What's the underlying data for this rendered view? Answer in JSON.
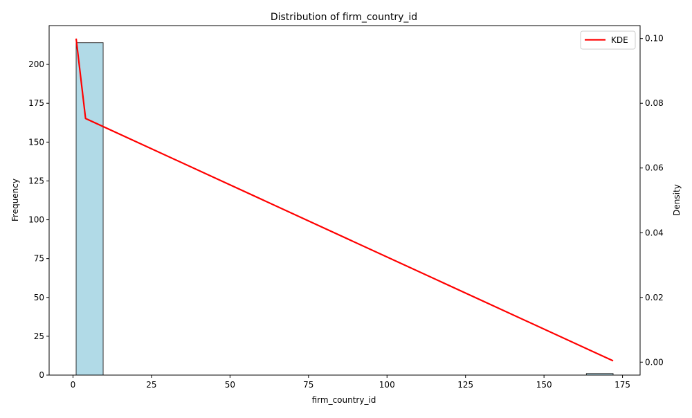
{
  "chart_data": {
    "type": "histogram",
    "title": "Distribution of firm_country_id",
    "xlabel": "firm_country_id",
    "ylabel": "Frequency",
    "ylabel_right": "Density",
    "xlim": [
      -7.6,
      180.6
    ],
    "ylim": [
      0,
      225
    ],
    "ylim_right": [
      -0.004,
      0.104
    ],
    "x_ticks": [
      0,
      25,
      50,
      75,
      100,
      125,
      150,
      175
    ],
    "y_ticks": [
      0,
      25,
      50,
      75,
      100,
      125,
      150,
      175,
      200
    ],
    "y_right_ticks": [
      0.0,
      0.02,
      0.04,
      0.06,
      0.08,
      0.1
    ],
    "y_right_tick_labels": [
      "0.00",
      "0.02",
      "0.04",
      "0.06",
      "0.08",
      "0.10"
    ],
    "bins": [
      {
        "x0": 1.0,
        "x1": 9.6,
        "count": 214
      },
      {
        "x0": 9.6,
        "x1": 18.1,
        "count": 0
      },
      {
        "x0": 18.1,
        "x1": 26.7,
        "count": 0
      },
      {
        "x0": 26.7,
        "x1": 35.2,
        "count": 0
      },
      {
        "x0": 35.2,
        "x1": 43.8,
        "count": 0
      },
      {
        "x0": 43.8,
        "x1": 52.3,
        "count": 0
      },
      {
        "x0": 52.3,
        "x1": 60.9,
        "count": 0
      },
      {
        "x0": 60.9,
        "x1": 69.4,
        "count": 0
      },
      {
        "x0": 69.4,
        "x1": 78.0,
        "count": 0
      },
      {
        "x0": 78.0,
        "x1": 86.5,
        "count": 0
      },
      {
        "x0": 86.5,
        "x1": 95.1,
        "count": 0
      },
      {
        "x0": 95.1,
        "x1": 103.6,
        "count": 0
      },
      {
        "x0": 103.6,
        "x1": 112.2,
        "count": 0
      },
      {
        "x0": 112.2,
        "x1": 120.7,
        "count": 0
      },
      {
        "x0": 120.7,
        "x1": 129.3,
        "count": 0
      },
      {
        "x0": 129.3,
        "x1": 137.8,
        "count": 0
      },
      {
        "x0": 137.8,
        "x1": 146.4,
        "count": 0
      },
      {
        "x0": 146.4,
        "x1": 154.9,
        "count": 0
      },
      {
        "x0": 154.9,
        "x1": 163.5,
        "count": 0
      },
      {
        "x0": 163.5,
        "x1": 172.0,
        "count": 1
      }
    ],
    "series": [
      {
        "name": "KDE",
        "axis": "right",
        "color": "#ff0000",
        "x": [
          1.0,
          4.0,
          172.0
        ],
        "y": [
          0.1,
          0.0753,
          0.0004
        ]
      }
    ],
    "bar_color": "#add8e6",
    "bar_edge_color": "#333333",
    "legend": {
      "position": "top-right",
      "entries": [
        "KDE"
      ]
    },
    "grid": false
  }
}
